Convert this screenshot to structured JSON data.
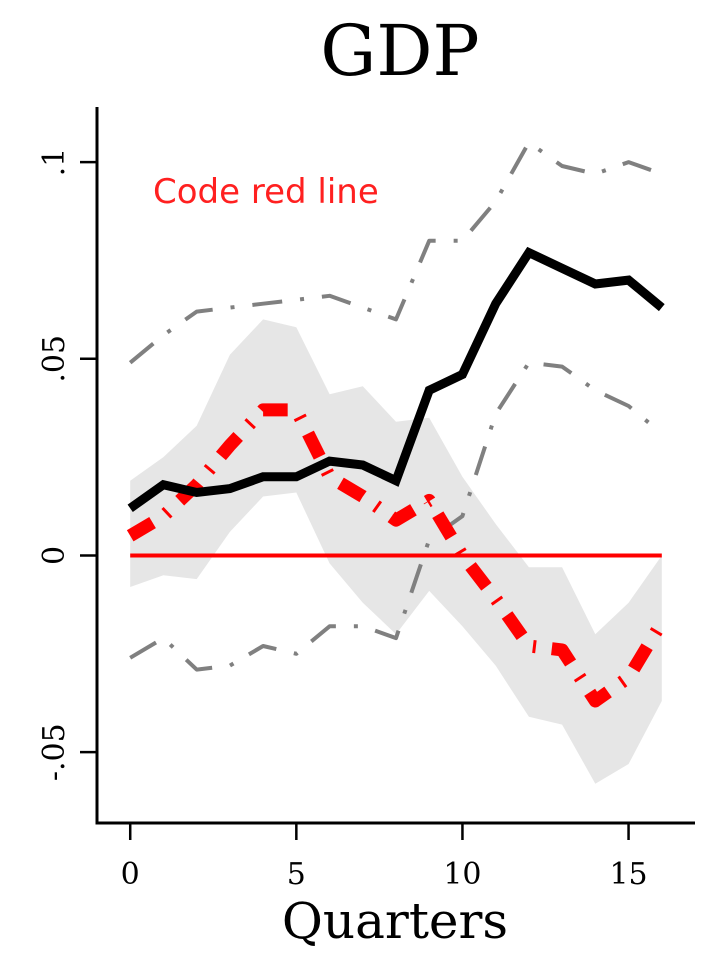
{
  "chart_data": {
    "type": "line",
    "title": "GDP",
    "xlabel": "Quarters",
    "ylabel": "",
    "xlim": [
      -1,
      17
    ],
    "ylim": [
      -0.068,
      0.114
    ],
    "x_ticks": [
      0,
      5,
      10,
      15
    ],
    "x_tick_labels": [
      "0",
      "5",
      "10",
      "15"
    ],
    "y_ticks": [
      -0.05,
      0,
      0.05,
      0.1
    ],
    "y_tick_labels": [
      "-.05",
      "0",
      ".05",
      ".1"
    ],
    "grid": false,
    "annotation": "Code red line",
    "x": [
      0,
      1,
      2,
      3,
      4,
      5,
      6,
      7,
      8,
      9,
      10,
      11,
      12,
      13,
      14,
      15,
      16
    ],
    "band": {
      "upper": [
        0.019,
        0.025,
        0.033,
        0.051,
        0.06,
        0.058,
        0.041,
        0.043,
        0.034,
        0.035,
        0.02,
        0.008,
        -0.003,
        -0.003,
        -0.02,
        -0.012,
        0.0
      ],
      "lower": [
        -0.008,
        -0.005,
        -0.006,
        0.006,
        0.015,
        0.016,
        -0.002,
        -0.012,
        -0.02,
        -0.009,
        -0.018,
        -0.028,
        -0.041,
        -0.043,
        -0.058,
        -0.053,
        -0.037
      ],
      "color": "#e6e6e6"
    },
    "series": [
      {
        "style": "solid-thick",
        "color": "#000000",
        "values": [
          0.012,
          0.018,
          0.016,
          0.017,
          0.02,
          0.02,
          0.024,
          0.023,
          0.019,
          0.042,
          0.046,
          0.064,
          0.077,
          0.073,
          0.069,
          0.07,
          0.063
        ]
      },
      {
        "style": "dashdot-thick",
        "color": "#ff0000",
        "values": [
          0.005,
          0.01,
          0.018,
          0.028,
          0.037,
          0.037,
          0.02,
          0.015,
          0.009,
          0.014,
          0.0,
          -0.011,
          -0.023,
          -0.024,
          -0.037,
          -0.031,
          -0.017
        ]
      },
      {
        "style": "dashdot-thin",
        "color": "#808080",
        "values": [
          0.049,
          0.056,
          0.062,
          0.063,
          0.064,
          0.065,
          0.066,
          0.063,
          0.06,
          0.08,
          0.08,
          0.09,
          0.105,
          0.099,
          0.097,
          0.1,
          0.097
        ]
      },
      {
        "style": "dashdot-thin",
        "color": "#808080",
        "values": [
          -0.026,
          -0.021,
          -0.029,
          -0.028,
          -0.023,
          -0.025,
          -0.018,
          -0.018,
          -0.021,
          0.004,
          0.01,
          0.036,
          0.049,
          0.048,
          0.042,
          0.038,
          0.031
        ]
      },
      {
        "style": "solid",
        "color": "#ff0000",
        "values": [
          0,
          0,
          0,
          0,
          0,
          0,
          0,
          0,
          0,
          0,
          0,
          0,
          0,
          0,
          0,
          0,
          0
        ]
      }
    ]
  }
}
